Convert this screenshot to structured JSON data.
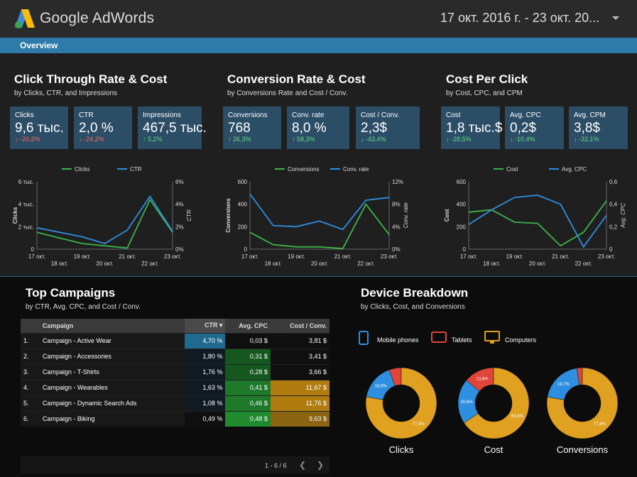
{
  "header": {
    "app_title": "Google AdWords",
    "date_range": "17 окт. 2016 г. - 23 окт. 20..."
  },
  "tabs": [
    {
      "label": "Overview"
    }
  ],
  "sections": {
    "ctr_cost": {
      "title": "Click Through Rate & Cost",
      "subtitle": "by Clicks, CTR, and Impressions",
      "kpis": [
        {
          "label": "Clicks",
          "value": "9,6 тыс.",
          "delta": "↓ -20,2%"
        },
        {
          "label": "CTR",
          "value": "2,0 %",
          "delta": "↓ -24,2%"
        },
        {
          "label": "Impressions",
          "value": "467,5 тыс.",
          "delta": "↑ 5,2%"
        }
      ]
    },
    "conv": {
      "title": "Conversion Rate & Cost",
      "subtitle": "by Conversions Rate and Cost / Conv.",
      "kpis": [
        {
          "label": "Conversions",
          "value": "768",
          "delta": "↑ 26,3%"
        },
        {
          "label": "Conv. rate",
          "value": "8,0 %",
          "delta": "↑ 58,3%"
        },
        {
          "label": "Cost / Conv.",
          "value": "2,3$",
          "delta": "↓ -43,4%"
        }
      ]
    },
    "cpc": {
      "title": "Cost Per Click",
      "subtitle": "by Cost, CPC, and CPM",
      "kpis": [
        {
          "label": "Cost",
          "value": "1,8 тыс.$",
          "delta": "↓ -28,5%"
        },
        {
          "label": "Avg. CPC",
          "value": "0,2$",
          "delta": "↓ -10,4%"
        },
        {
          "label": "Avg. CPM",
          "value": "3,8$",
          "delta": "↓ -32,1%"
        }
      ]
    },
    "campaigns": {
      "title": "Top Campaigns",
      "subtitle": "by CTR, Avg. CPC, and Cost / Conv."
    },
    "device": {
      "title": "Device Breakdown",
      "subtitle": "by Clicks, Cost, and Conversions"
    }
  },
  "chart_data": [
    {
      "type": "line",
      "x": [
        "17 окт.",
        "18 окт.",
        "19 окт.",
        "20 окт.",
        "21 окт.",
        "22 окт.",
        "23 окт."
      ],
      "series": [
        {
          "name": "Clicks",
          "axis": "left",
          "color": "#3cb34a",
          "values": [
            1500,
            1000,
            500,
            300,
            100,
            4400,
            1500
          ]
        },
        {
          "name": "CTR",
          "axis": "right",
          "color": "#2e8fe0",
          "values": [
            1.9,
            1.5,
            1.1,
            0.5,
            1.7,
            4.7,
            1.6
          ]
        }
      ],
      "ylabel": "Clicks",
      "y2label": "CTR",
      "yticks": [
        "0",
        "2 тыс.",
        "4 тыс.",
        "6 тыс."
      ],
      "ylim": [
        0,
        6000
      ],
      "y2ticks": [
        "0%",
        "2%",
        "4%",
        "6%"
      ],
      "y2lim": [
        0,
        6
      ]
    },
    {
      "type": "line",
      "x": [
        "17 окт.",
        "18 окт.",
        "19 окт.",
        "20 окт.",
        "21 окт.",
        "22 окт.",
        "23 окт."
      ],
      "series": [
        {
          "name": "Conversions",
          "axis": "left",
          "color": "#3cb34a",
          "values": [
            150,
            40,
            20,
            20,
            5,
            400,
            130
          ]
        },
        {
          "name": "Conv. rate",
          "axis": "right",
          "color": "#2e8fe0",
          "values": [
            9.8,
            4.2,
            4.0,
            5.0,
            3.5,
            8.7,
            9.2
          ]
        }
      ],
      "ylabel": "Conversions",
      "y2label": "Conv. rate",
      "yticks": [
        "0",
        "200",
        "400",
        "600"
      ],
      "ylim": [
        0,
        600
      ],
      "y2ticks": [
        "0%",
        "4%",
        "8%",
        "12%"
      ],
      "y2lim": [
        0,
        12
      ]
    },
    {
      "type": "line",
      "x": [
        "17 окт.",
        "18 окт.",
        "19 окт.",
        "20 окт.",
        "21 окт.",
        "22 окт.",
        "23 окт."
      ],
      "series": [
        {
          "name": "Cost",
          "axis": "left",
          "color": "#3cb34a",
          "values": [
            330,
            350,
            240,
            230,
            30,
            150,
            430
          ]
        },
        {
          "name": "Avg. CPC",
          "axis": "right",
          "color": "#2e8fe0",
          "values": [
            0.22,
            0.35,
            0.46,
            0.48,
            0.4,
            0.02,
            0.3
          ]
        }
      ],
      "ylabel": "Cost",
      "y2label": "Avg. CPC",
      "yticks": [
        "0",
        "200",
        "400",
        "600"
      ],
      "ylim": [
        0,
        600
      ],
      "y2ticks": [
        "0",
        "0,2",
        "0,4",
        "0,6"
      ],
      "y2lim": [
        0,
        0.6
      ]
    },
    {
      "type": "table",
      "columns": [
        "Campaign",
        "CTR ▾",
        "Avg. CPC",
        "Cost / Conv."
      ],
      "rows": [
        {
          "idx": "1.",
          "name": "Campaign - Active Wear",
          "ctr": "4,70 %",
          "cpc": "0,03 $",
          "cost": "3,81 $"
        },
        {
          "idx": "2.",
          "name": "Campaign - Accessories",
          "ctr": "1,80 %",
          "cpc": "0,31 $",
          "cost": "3,41 $"
        },
        {
          "idx": "3.",
          "name": "Campaign - T-Shirts",
          "ctr": "1,76 %",
          "cpc": "0,28 $",
          "cost": "3,66 $"
        },
        {
          "idx": "4.",
          "name": "Campaign - Wearables",
          "ctr": "1,63 %",
          "cpc": "0,41 $",
          "cost": "11,67 $"
        },
        {
          "idx": "5.",
          "name": "Campaign - Dynamic Search Ads",
          "ctr": "1,08 %",
          "cpc": "0,46 $",
          "cost": "11,76 $"
        },
        {
          "idx": "6.",
          "name": "Campaign - Biking",
          "ctr": "0,49 %",
          "cpc": "0,48 $",
          "cost": "9,63 $"
        }
      ],
      "pagination": "1 - 6 / 6"
    },
    {
      "type": "pie",
      "legend": [
        {
          "name": "Mobile phones",
          "color": "#2e8fe0",
          "icon": "mobile-phone-icon"
        },
        {
          "name": "Tablets",
          "color": "#e0453a",
          "icon": "tablet-icon"
        },
        {
          "name": "Computers",
          "color": "#e0a020",
          "icon": "computer-icon"
        }
      ],
      "charts": [
        {
          "label": "Clicks",
          "slices": [
            {
              "name": "Mobile phones",
              "value": 16.6,
              "text": "16,6%"
            },
            {
              "name": "Tablets",
              "value": 5.5,
              "text": ""
            },
            {
              "name": "Computers",
              "value": 77.9,
              "text": "77,9%"
            }
          ]
        },
        {
          "label": "Cost",
          "slices": [
            {
              "name": "Mobile phones",
              "value": 20.6,
              "text": "20,6%"
            },
            {
              "name": "Tablets",
              "value": 13.8,
              "text": "13,8%"
            },
            {
              "name": "Computers",
              "value": 65.6,
              "text": "65,6%"
            }
          ]
        },
        {
          "label": "Conversions",
          "slices": [
            {
              "name": "Mobile phones",
              "value": 19.7,
              "text": "19,7%"
            },
            {
              "name": "Tablets",
              "value": 2.5,
              "text": ""
            },
            {
              "name": "Computers",
              "value": 77.8,
              "text": "77,8%"
            }
          ]
        }
      ]
    }
  ],
  "colors": {
    "accent": "#2e7aa8",
    "kpi_bg": "#2b4d66",
    "green_line": "#3cb34a",
    "blue_line": "#2e8fe0"
  }
}
